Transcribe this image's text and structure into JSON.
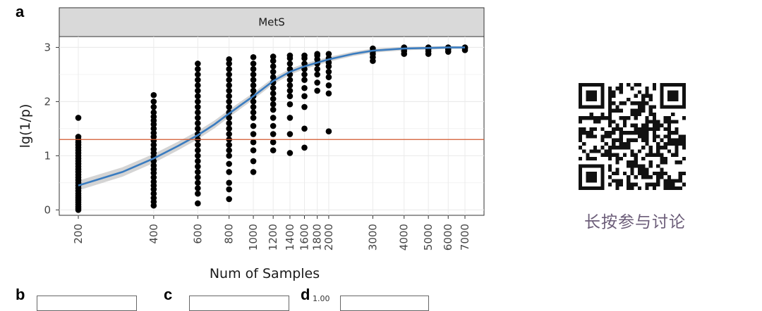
{
  "panel_labels": {
    "a": "a",
    "b": "b",
    "c": "c",
    "d": "d"
  },
  "qr": {
    "caption": "长按参与讨论",
    "icon": "qr-code-icon"
  },
  "mini_panels": {
    "d_tick": "1.00"
  },
  "colors": {
    "strip_bg": "#d9d9d9",
    "points": "#000000",
    "fit_line": "#3a7cc0",
    "ci_band": "#c9c9c9",
    "threshold_line": "#d2582e",
    "grid": "#ebebeb"
  },
  "chart_data": {
    "type": "scatter",
    "facet_title": "MetS",
    "xlabel": "Num of Samples",
    "ylabel": "lg(1/p)",
    "x_scale": "log",
    "x_ticks": [
      "200",
      "400",
      "600",
      "800",
      "1000",
      "1200",
      "1400",
      "1600",
      "1800",
      "2000",
      "3000",
      "4000",
      "5000",
      "6000",
      "7000"
    ],
    "ylim": [
      -0.1,
      3.2
    ],
    "y_ticks": [
      0,
      1,
      2,
      3
    ],
    "grid": true,
    "threshold": 1.3,
    "groups": [
      {
        "x": 200,
        "y": [
          0.0,
          0.03,
          0.06,
          0.1,
          0.14,
          0.18,
          0.22,
          0.26,
          0.3,
          0.35,
          0.4,
          0.45,
          0.5,
          0.55,
          0.6,
          0.65,
          0.7,
          0.75,
          0.8,
          0.85,
          0.9,
          0.95,
          1.0,
          1.05,
          1.1,
          1.15,
          1.2,
          1.25,
          1.3,
          1.35,
          1.7
        ]
      },
      {
        "x": 400,
        "y": [
          0.08,
          0.15,
          0.22,
          0.3,
          0.38,
          0.45,
          0.52,
          0.6,
          0.68,
          0.75,
          0.82,
          0.9,
          0.98,
          1.05,
          1.12,
          1.2,
          1.28,
          1.35,
          1.42,
          1.5,
          1.58,
          1.65,
          1.72,
          1.8,
          1.9,
          2.0,
          2.12
        ]
      },
      {
        "x": 600,
        "y": [
          0.12,
          0.3,
          0.4,
          0.5,
          0.6,
          0.7,
          0.8,
          0.9,
          1.0,
          1.1,
          1.2,
          1.3,
          1.4,
          1.5,
          1.6,
          1.7,
          1.8,
          1.9,
          2.0,
          2.1,
          2.2,
          2.3,
          2.4,
          2.5,
          2.6,
          2.7
        ]
      },
      {
        "x": 800,
        "y": [
          0.2,
          0.38,
          0.5,
          0.7,
          0.85,
          1.0,
          1.1,
          1.2,
          1.3,
          1.4,
          1.5,
          1.6,
          1.7,
          1.8,
          1.9,
          2.0,
          2.1,
          2.2,
          2.3,
          2.4,
          2.5,
          2.6,
          2.7,
          2.78
        ]
      },
      {
        "x": 1000,
        "y": [
          0.7,
          0.9,
          1.1,
          1.25,
          1.4,
          1.55,
          1.7,
          1.8,
          1.9,
          2.0,
          2.1,
          2.2,
          2.3,
          2.4,
          2.5,
          2.6,
          2.7,
          2.82
        ]
      },
      {
        "x": 1200,
        "y": [
          1.1,
          1.25,
          1.4,
          1.55,
          1.7,
          1.85,
          1.95,
          2.05,
          2.15,
          2.25,
          2.35,
          2.45,
          2.55,
          2.65,
          2.75,
          2.83
        ]
      },
      {
        "x": 1400,
        "y": [
          1.05,
          1.4,
          1.7,
          1.95,
          2.1,
          2.2,
          2.3,
          2.4,
          2.5,
          2.6,
          2.7,
          2.8,
          2.85
        ]
      },
      {
        "x": 1600,
        "y": [
          1.15,
          1.5,
          1.9,
          2.1,
          2.25,
          2.4,
          2.5,
          2.6,
          2.7,
          2.8,
          2.85
        ]
      },
      {
        "x": 1800,
        "y": [
          2.2,
          2.35,
          2.5,
          2.6,
          2.7,
          2.78,
          2.85,
          2.88
        ]
      },
      {
        "x": 2000,
        "y": [
          1.45,
          2.15,
          2.3,
          2.45,
          2.55,
          2.65,
          2.72,
          2.8,
          2.88
        ]
      },
      {
        "x": 3000,
        "y": [
          2.75,
          2.82,
          2.88,
          2.93,
          2.98
        ]
      },
      {
        "x": 4000,
        "y": [
          2.88,
          2.93,
          2.97,
          3.0
        ]
      },
      {
        "x": 5000,
        "y": [
          2.88,
          2.93,
          2.97,
          3.0
        ]
      },
      {
        "x": 6000,
        "y": [
          2.92,
          2.96,
          3.0
        ]
      },
      {
        "x": 7000,
        "y": [
          2.95,
          2.98,
          3.0
        ]
      }
    ],
    "fit": {
      "x": [
        200,
        300,
        400,
        500,
        600,
        700,
        800,
        900,
        1000,
        1200,
        1400,
        1600,
        1800,
        2000,
        2500,
        3000,
        4000,
        5000,
        6000,
        7000
      ],
      "y": [
        0.45,
        0.7,
        0.95,
        1.18,
        1.38,
        1.58,
        1.78,
        1.95,
        2.1,
        2.38,
        2.55,
        2.65,
        2.72,
        2.78,
        2.88,
        2.94,
        2.98,
        2.99,
        3.0,
        3.0
      ]
    }
  }
}
